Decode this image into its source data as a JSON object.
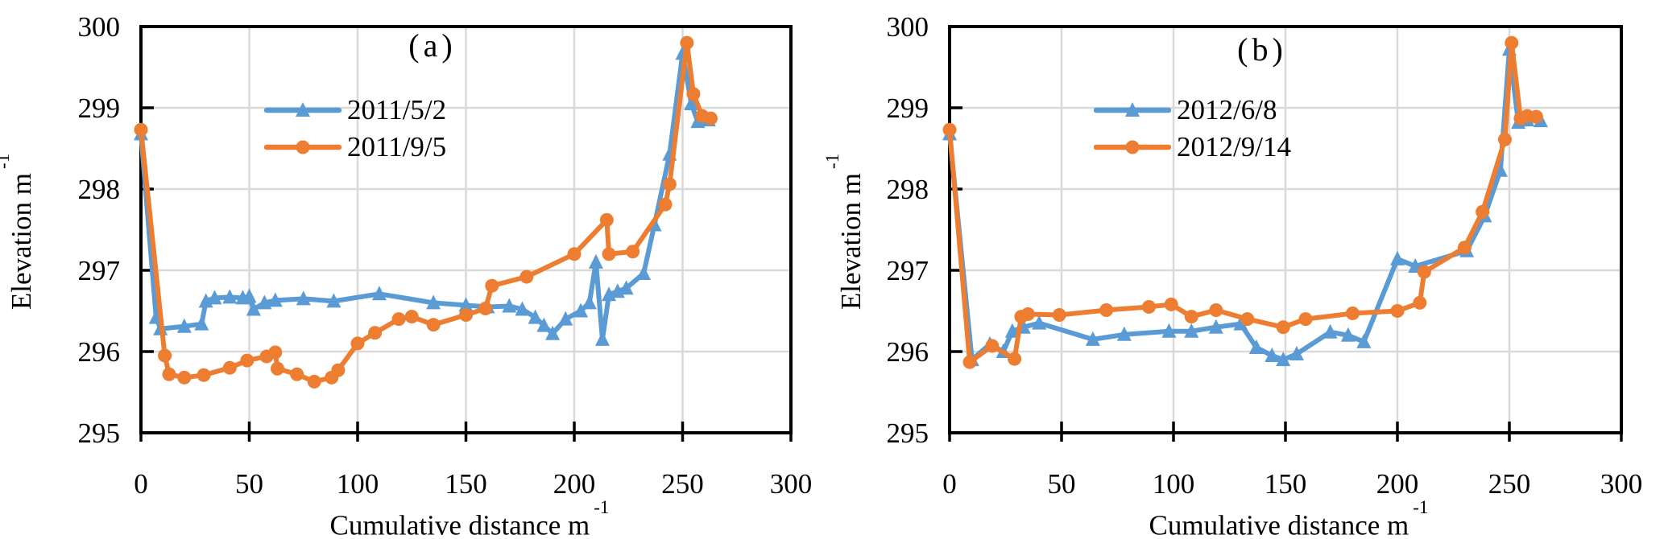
{
  "figure": {
    "background": "#FFFFFF"
  },
  "colors": {
    "series_blue": "#5B9BD5",
    "series_orange": "#ED7D31",
    "gridline": "#D9D9D9",
    "axis": "#000000"
  },
  "chart_data": [
    {
      "type": "line",
      "panel_label": "(a)",
      "xlabel": "Cumulative distance m",
      "xlabel_superscript": "-1",
      "ylabel": "Elevation m",
      "ylabel_superscript": "-1",
      "xlim": [
        0,
        300
      ],
      "ylim": [
        295,
        300
      ],
      "xticks": [
        0,
        50,
        100,
        150,
        200,
        250,
        300
      ],
      "yticks": [
        295,
        296,
        297,
        298,
        299,
        300
      ],
      "grid": true,
      "legend_position": "inside-upper-left",
      "series": [
        {
          "name": "2011/5/2",
          "color": "#5B9BD5",
          "marker": "triangle",
          "x": [
            0,
            7,
            9,
            20,
            28,
            30,
            34,
            41,
            47,
            50,
            52,
            57,
            62,
            75,
            89,
            110,
            135,
            150,
            160,
            170,
            176,
            182,
            186,
            190,
            196,
            203,
            207,
            210,
            213,
            216,
            220,
            224,
            232,
            237,
            244,
            250,
            254,
            257,
            262
          ],
          "y": [
            298.68,
            296.42,
            296.28,
            296.31,
            296.34,
            296.62,
            296.66,
            296.67,
            296.66,
            296.68,
            296.52,
            296.6,
            296.63,
            296.65,
            296.62,
            296.71,
            296.6,
            296.57,
            296.55,
            296.56,
            296.52,
            296.42,
            296.32,
            296.22,
            296.4,
            296.5,
            296.6,
            297.1,
            296.15,
            296.7,
            296.74,
            296.78,
            296.96,
            297.56,
            298.43,
            299.67,
            299.05,
            298.83,
            298.85
          ]
        },
        {
          "name": "2011/9/5",
          "color": "#ED7D31",
          "marker": "circle",
          "x": [
            0,
            11,
            13,
            20,
            29,
            41,
            49,
            58,
            62,
            63,
            72,
            80,
            88,
            91,
            100,
            108,
            119,
            125,
            135,
            150,
            159,
            162,
            178,
            200,
            215,
            216,
            227,
            242,
            244,
            252,
            255,
            259,
            263
          ],
          "y": [
            298.73,
            295.95,
            295.72,
            295.68,
            295.71,
            295.8,
            295.89,
            295.94,
            295.99,
            295.79,
            295.72,
            295.63,
            295.68,
            295.77,
            296.1,
            296.23,
            296.4,
            296.43,
            296.33,
            296.45,
            296.53,
            296.81,
            296.92,
            297.2,
            297.62,
            297.2,
            297.23,
            297.81,
            298.06,
            299.8,
            299.17,
            298.9,
            298.87
          ]
        }
      ]
    },
    {
      "type": "line",
      "panel_label": "(b)",
      "xlabel": "Cumulative distance m",
      "xlabel_superscript": "-1",
      "ylabel": "Elevation m",
      "ylabel_superscript": "-1",
      "xlim": [
        0,
        300
      ],
      "ylim": [
        295,
        300
      ],
      "xticks": [
        0,
        50,
        100,
        150,
        200,
        250,
        300
      ],
      "yticks": [
        295,
        296,
        297,
        298,
        299,
        300
      ],
      "grid": true,
      "legend_position": "inside-upper-left",
      "series": [
        {
          "name": "2012/6/8",
          "color": "#5B9BD5",
          "marker": "triangle",
          "x": [
            0,
            10,
            18,
            24,
            28,
            33,
            40,
            64,
            78,
            98,
            108,
            119,
            130,
            137,
            144,
            149,
            155,
            170,
            178,
            185,
            200,
            208,
            231,
            239,
            246,
            250,
            254,
            258,
            264
          ],
          "y": [
            298.68,
            295.9,
            296.09,
            296.0,
            296.25,
            296.3,
            296.35,
            296.15,
            296.21,
            296.25,
            296.25,
            296.3,
            296.34,
            296.05,
            295.95,
            295.9,
            295.97,
            296.24,
            296.2,
            296.12,
            297.14,
            297.05,
            297.24,
            297.67,
            298.23,
            299.72,
            298.82,
            298.85,
            298.84
          ]
        },
        {
          "name": "2012/9/14",
          "color": "#ED7D31",
          "marker": "circle",
          "x": [
            0,
            9,
            19,
            29,
            32,
            35,
            49,
            70,
            89,
            99,
            108,
            119,
            133,
            149,
            159,
            180,
            200,
            210,
            212,
            230,
            238,
            248,
            251,
            255,
            258,
            262
          ],
          "y": [
            298.73,
            295.87,
            296.07,
            295.91,
            296.43,
            296.46,
            296.45,
            296.51,
            296.55,
            296.58,
            296.43,
            296.51,
            296.4,
            296.3,
            296.4,
            296.47,
            296.5,
            296.6,
            296.98,
            297.28,
            297.72,
            298.61,
            299.8,
            298.87,
            298.9,
            298.89
          ]
        }
      ]
    }
  ]
}
